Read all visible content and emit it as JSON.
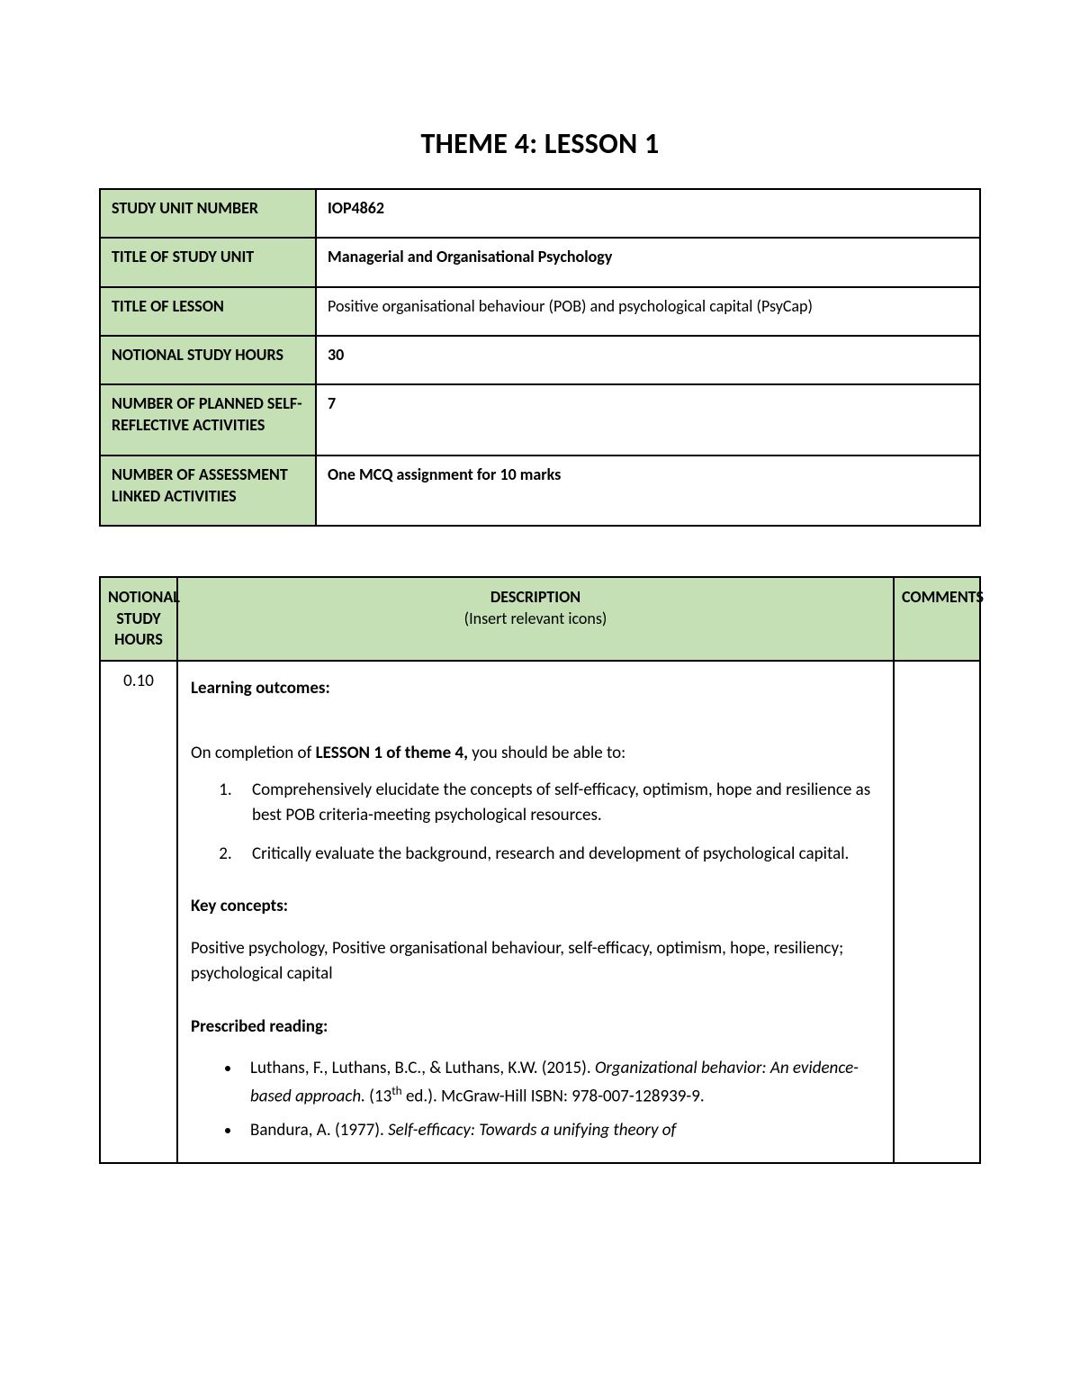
{
  "colors": {
    "header_bg": "#c5e0b4",
    "border": "#000000",
    "page_bg": "#ffffff",
    "text": "#000000"
  },
  "title": "THEME 4: LESSON 1",
  "info_rows": [
    {
      "label": "STUDY UNIT NUMBER",
      "value": "IOP4862",
      "bold": true
    },
    {
      "label": "TITLE OF STUDY UNIT",
      "value": "Managerial and Organisational Psychology",
      "bold": true
    },
    {
      "label": "TITLE OF LESSON",
      "value": "Positive organisational behaviour (POB) and psychological capital (PsyCap)",
      "bold": false
    },
    {
      "label": "NOTIONAL STUDY HOURS",
      "value": "30",
      "bold": true
    },
    {
      "label": "NUMBER OF PLANNED SELF-REFLECTIVE ACTIVITIES",
      "value": "7",
      "bold": true
    },
    {
      "label": "NUMBER OF ASSESSMENT LINKED ACTIVITIES",
      "value": "One MCQ assignment for 10 marks",
      "bold": true
    }
  ],
  "lesson_table": {
    "col_widths": {
      "hours": 86,
      "comments": 96
    },
    "headers": {
      "hours": "NOTIONAL STUDY HOURS",
      "desc_main": "DESCRIPTION",
      "desc_sub": "(Insert relevant icons)",
      "comments": "COMMENTS"
    },
    "row": {
      "hours": "0.10",
      "learning_outcomes_heading": "Learning outcomes:",
      "intro_pre": "On completion of ",
      "intro_bold": "LESSON 1 of theme 4,",
      "intro_post": " you should be able to:",
      "outcomes": [
        "Comprehensively elucidate the concepts of self-efficacy, optimism, hope and resilience as best POB criteria-meeting psychological resources.",
        "Critically evaluate the background, research and development of psychological capital."
      ],
      "key_concepts_heading": "Key concepts:",
      "key_concepts_text": "Positive psychology, Positive organisational behaviour, self-efficacy, optimism, hope, resiliency; psychological capital",
      "reading_heading": "Prescribed reading:",
      "reading": [
        {
          "pre": "Luthans, F., Luthans, B.C., & Luthans, K.W. (2015). ",
          "italic": "Organizational behavior: An evidence-based approach.",
          "post_pre": " (13",
          "sup": "th",
          "post_after": " ed.).  McGraw-Hill ISBN: 978-007-128939-9."
        },
        {
          "pre": "Bandura, A. (1977). ",
          "italic": "Self-efficacy: Towards a unifying theory of",
          "post_pre": "",
          "sup": "",
          "post_after": ""
        }
      ]
    }
  }
}
